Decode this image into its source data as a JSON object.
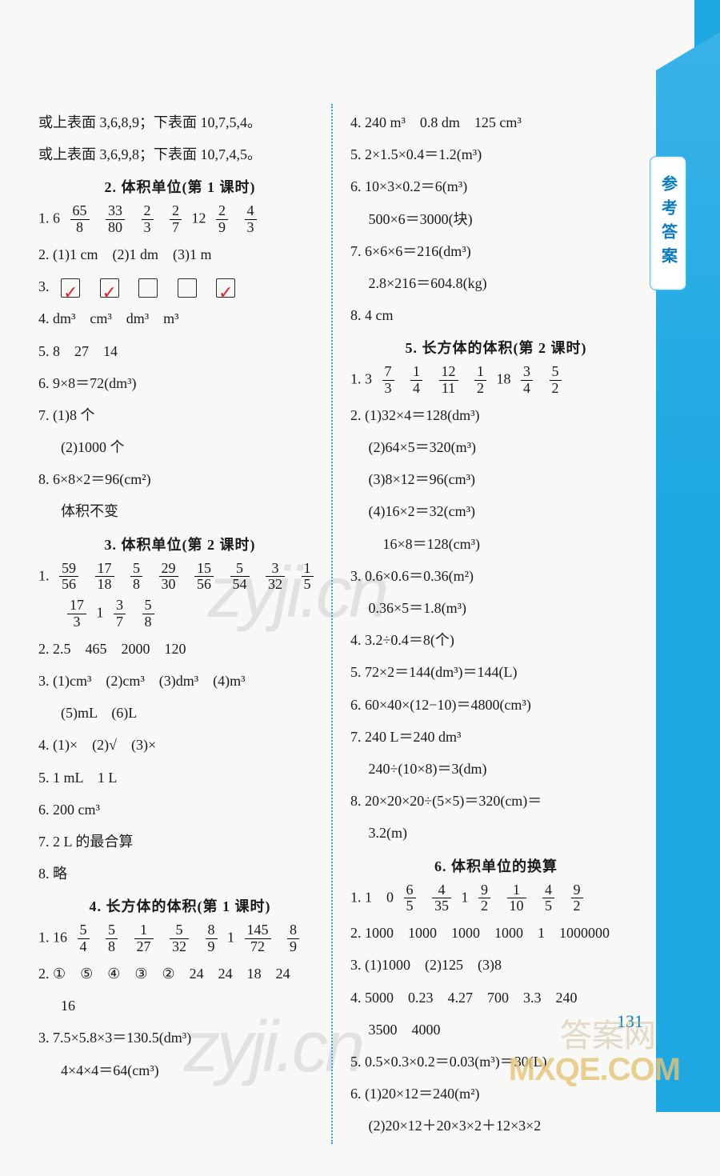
{
  "side_tab": "参考答案",
  "page_number": "131",
  "watermark": "zyji.cn",
  "bottom_stamp": "MXQE.COM",
  "bottom_stamp2": "答案网",
  "left": {
    "pre": [
      "或上表面 3,6,8,9；下表面 10,7,5,4。",
      "或上表面 3,6,9,8；下表面 10,7,4,5。"
    ],
    "s2": {
      "title": "2. 体积单位(第 1 课时)",
      "q1_lead": "1. 6",
      "q1_f": [
        [
          "65",
          "8"
        ],
        [
          "33",
          "80"
        ],
        [
          "2",
          "3"
        ],
        [
          "2",
          "7"
        ]
      ],
      "q1_mid": "12",
      "q1_f2": [
        [
          "2",
          "9"
        ],
        [
          "4",
          "3"
        ]
      ],
      "q2": "2. (1)1 cm　(2)1 dm　(3)1 m",
      "q3": "3.",
      "q3_boxes": [
        true,
        true,
        false,
        false,
        true
      ],
      "q4": "4. dm³　cm³　dm³　m³",
      "q5": "5. 8　27　14",
      "q6": "6. 9×8＝72(dm³)",
      "q7a": "7. (1)8 个",
      "q7b": "(2)1000 个",
      "q8a": "8. 6×8×2＝96(cm²)",
      "q8b": "体积不变"
    },
    "s3": {
      "title": "3. 体积单位(第 2 课时)",
      "q1_lead": "1.",
      "q1_f": [
        [
          "59",
          "56"
        ],
        [
          "17",
          "18"
        ],
        [
          "5",
          "8"
        ],
        [
          "29",
          "30"
        ],
        [
          "15",
          "56"
        ],
        [
          "5",
          "54"
        ],
        [
          "3",
          "32"
        ],
        [
          "1",
          "5"
        ]
      ],
      "q1_row2_f1": [
        "17",
        "3"
      ],
      "q1_row2_mid": "1",
      "q1_row2_f2": [
        [
          "3",
          "7"
        ],
        [
          "5",
          "8"
        ]
      ],
      "q2": "2. 2.5　465　2000　120",
      "q3a": "3. (1)cm³　(2)cm³　(3)dm³　(4)m³",
      "q3b": "(5)mL　(6)L",
      "q4": "4. (1)×　(2)√　(3)×",
      "q5": "5. 1 mL　1 L",
      "q6": "6. 200 cm³",
      "q7": "7. 2 L 的最合算",
      "q8": "8. 略"
    },
    "s4": {
      "title": "4. 长方体的体积(第 1 课时)",
      "q1_lead": "1. 16",
      "q1_f": [
        [
          "5",
          "4"
        ],
        [
          "5",
          "8"
        ],
        [
          "1",
          "27"
        ],
        [
          "5",
          "32"
        ],
        [
          "8",
          "9"
        ]
      ],
      "q1_mid": "1",
      "q1_f2": [
        [
          "145",
          "72"
        ],
        [
          "8",
          "9"
        ]
      ],
      "q2a": "2. ①　⑤　④　③　②　24　24　18　24",
      "q2b": "16",
      "q3a": "3. 7.5×5.8×3＝130.5(dm³)",
      "q3b": "4×4×4＝64(cm³)"
    }
  },
  "right": {
    "pre": [
      "4. 240 m³　0.8 dm　125 cm³",
      "5. 2×1.5×0.4＝1.2(m³)",
      "6. 10×3×0.2＝6(m³)",
      "　 500×6＝3000(块)",
      "7. 6×6×6＝216(dm³)",
      "　 2.8×216＝604.8(kg)",
      "8. 4 cm"
    ],
    "s5": {
      "title": "5. 长方体的体积(第 2 课时)",
      "q1_lead": "1. 3",
      "q1_f": [
        [
          "7",
          "3"
        ],
        [
          "1",
          "4"
        ],
        [
          "12",
          "11"
        ],
        [
          "1",
          "2"
        ]
      ],
      "q1_mid": "18",
      "q1_f2": [
        [
          "3",
          "4"
        ],
        [
          "5",
          "2"
        ]
      ],
      "q2": [
        "2. (1)32×4＝128(dm³)",
        "　 (2)64×5＝320(m³)",
        "　 (3)8×12＝96(cm³)",
        "　 (4)16×2＝32(cm³)",
        "　　 16×8＝128(cm³)"
      ],
      "q3": [
        "3. 0.6×0.6＝0.36(m²)",
        "　 0.36×5＝1.8(m³)"
      ],
      "q4": "4. 3.2÷0.4＝8(个)",
      "q5": "5. 72×2＝144(dm³)＝144(L)",
      "q6": "6. 60×40×(12−10)＝4800(cm³)",
      "q7": [
        "7. 240 L＝240 dm³",
        "　 240÷(10×8)＝3(dm)"
      ],
      "q8": [
        "8. 20×20×20÷(5×5)＝320(cm)＝",
        "　 3.2(m)"
      ]
    },
    "s6": {
      "title": "6. 体积单位的换算",
      "q1_lead": "1. 1　0",
      "q1_f": [
        [
          "6",
          "5"
        ],
        [
          "4",
          "35"
        ]
      ],
      "q1_mid": "1",
      "q1_f2": [
        [
          "9",
          "2"
        ],
        [
          "1",
          "10"
        ],
        [
          "4",
          "5"
        ],
        [
          "9",
          "2"
        ]
      ],
      "q2": "2. 1000　1000　1000　1000　1　1000000",
      "q3": "3. (1)1000　(2)125　(3)8",
      "q4": [
        "4. 5000　0.23　4.27　700　3.3　240",
        "　 3500　4000"
      ],
      "q5": "5. 0.5×0.3×0.2＝0.03(m³)＝30(L)",
      "q6": [
        "6. (1)20×12＝240(m²)",
        "　 (2)20×12＋20×3×2＋12×3×2"
      ]
    }
  }
}
